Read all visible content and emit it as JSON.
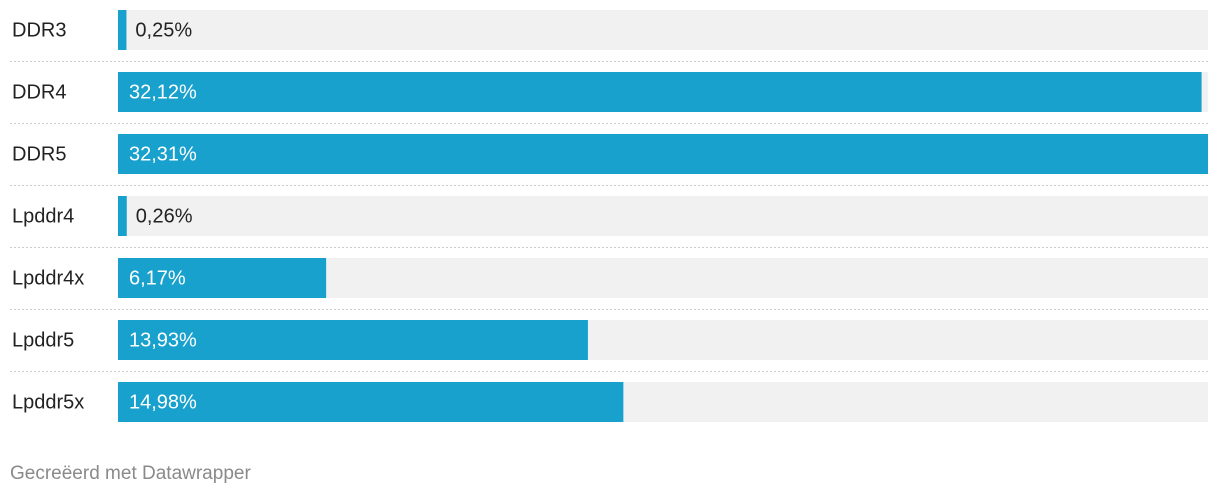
{
  "chart_data": {
    "type": "bar",
    "orientation": "horizontal",
    "categories": [
      "DDR3",
      "DDR4",
      "DDR5",
      "Lpddr4",
      "Lpddr4x",
      "Lpddr5",
      "Lpddr5x"
    ],
    "values": [
      0.25,
      32.12,
      32.31,
      0.26,
      6.17,
      13.93,
      14.98
    ],
    "value_labels": [
      "0,25%",
      "32,12%",
      "32,31%",
      "0,26%",
      "6,17%",
      "13,93%",
      "14,98%"
    ],
    "color": "#18a1cd",
    "xlim": [
      0,
      32.31
    ]
  },
  "footer": "Gecreëerd met Datawrapper"
}
